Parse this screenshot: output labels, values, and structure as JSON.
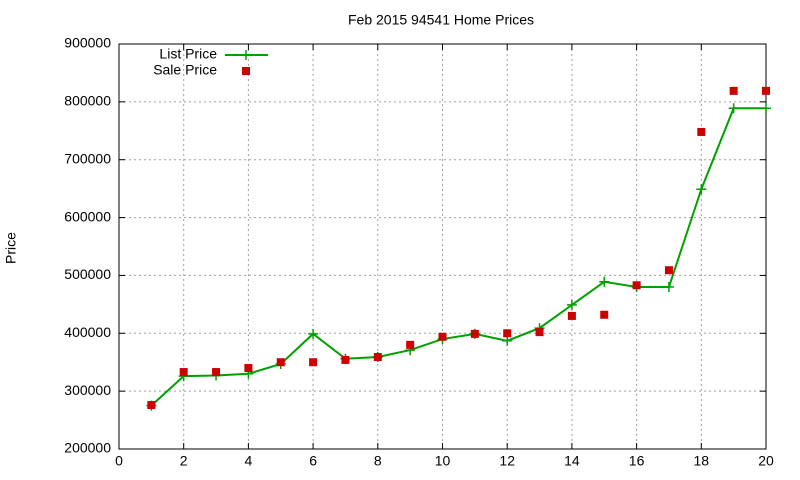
{
  "chart_data": {
    "type": "line",
    "title": "Feb 2015 94541 Home Prices",
    "y_label": "Price",
    "x": [
      1,
      2,
      3,
      4,
      5,
      6,
      7,
      8,
      9,
      10,
      11,
      12,
      13,
      14,
      15,
      16,
      17,
      18,
      19,
      20
    ],
    "series": [
      {
        "name": "List Price",
        "color": "#00a000",
        "line": true,
        "marker": "plus",
        "values": [
          275000,
          326000,
          327000,
          330000,
          347000,
          399000,
          356000,
          359000,
          371000,
          390000,
          399000,
          387000,
          409000,
          449000,
          489000,
          480000,
          480000,
          649000,
          789000,
          789000
        ]
      },
      {
        "name": "Sale Price",
        "color": "#cc0000",
        "line": false,
        "marker": "square",
        "values": [
          276000,
          333000,
          333000,
          340000,
          350000,
          350000,
          354000,
          359000,
          380000,
          394000,
          399000,
          400000,
          402000,
          430000,
          432000,
          483000,
          509000,
          748000,
          819000,
          819000
        ]
      }
    ],
    "xlim": [
      0,
      20
    ],
    "xticks": [
      0,
      2,
      4,
      6,
      8,
      10,
      12,
      14,
      16,
      18,
      20
    ],
    "ylim": [
      200000,
      900000
    ],
    "yticks": [
      200000,
      300000,
      400000,
      500000,
      600000,
      700000,
      800000,
      900000
    ],
    "grid": true,
    "legend": "top-left"
  }
}
